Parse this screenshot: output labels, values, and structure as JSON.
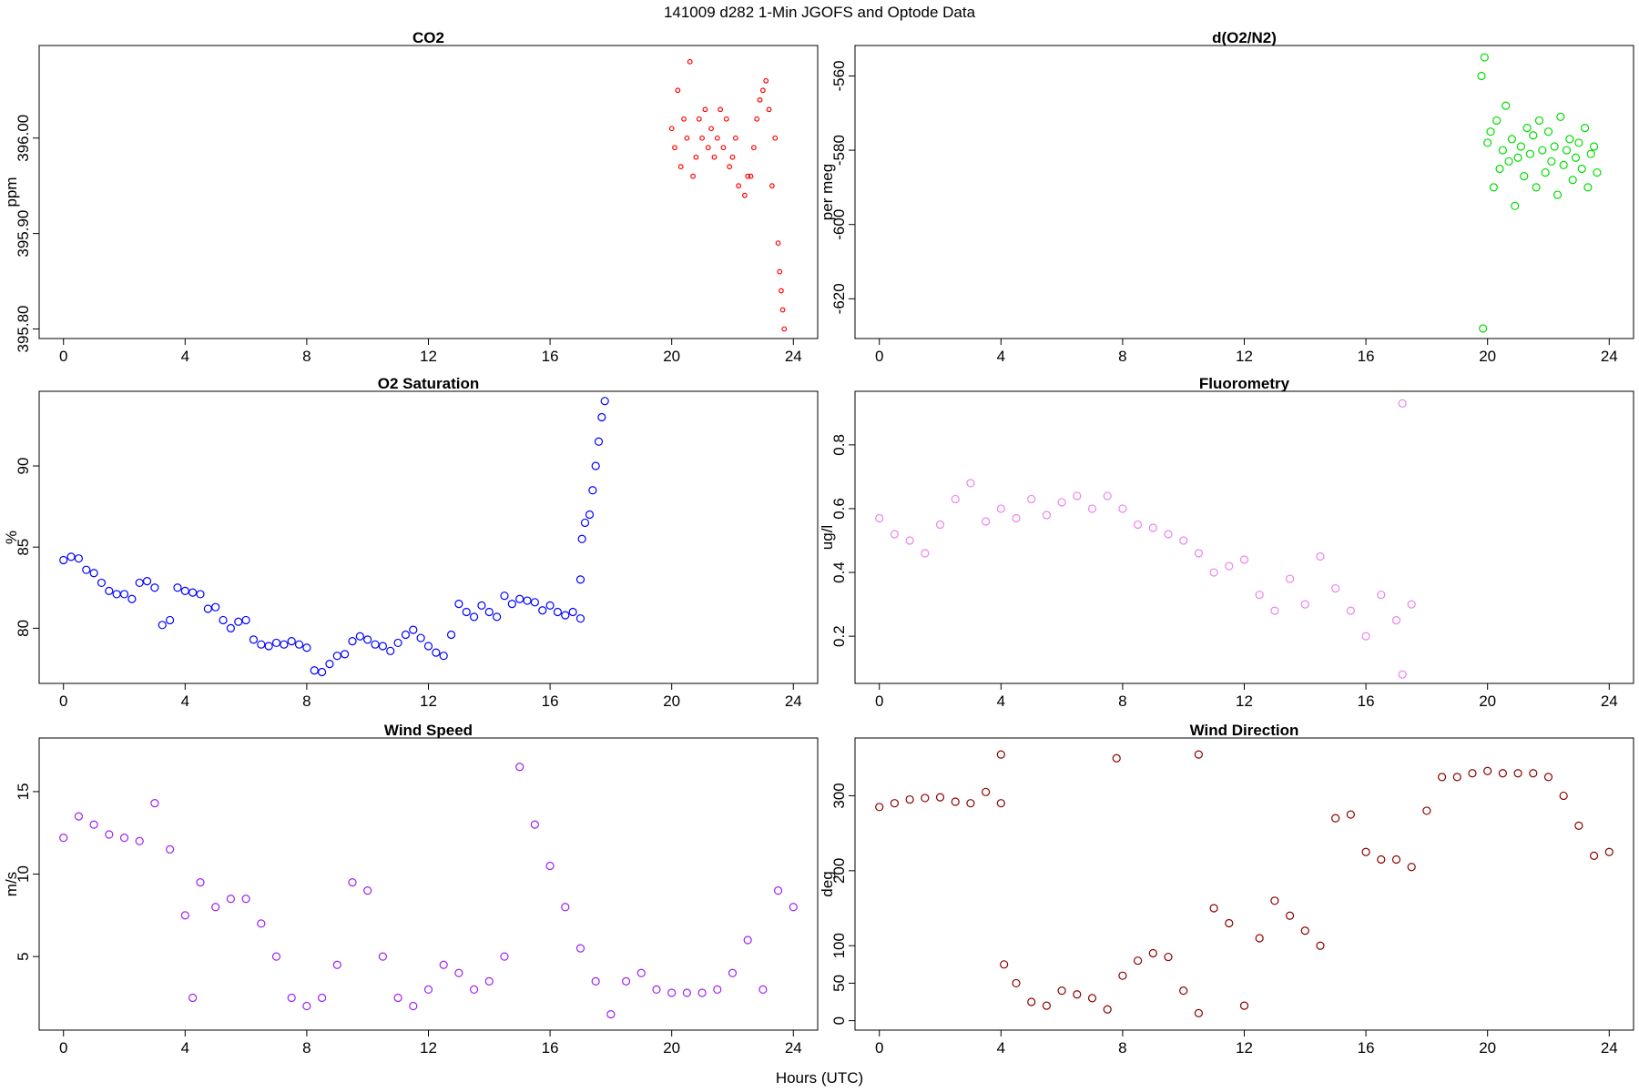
{
  "title": "141009   d282   1-Min  JGOFS and Optode Data",
  "x_label": "Hours (UTC)",
  "chart_data": [
    {
      "type": "scatter",
      "title": "CO2",
      "y_label": "ppm",
      "color": "#ff0000",
      "xlim": [
        -0.8,
        24.8
      ],
      "xticks": [
        0,
        4,
        8,
        12,
        16,
        20,
        24
      ],
      "ylim": [
        395.79,
        396.097
      ],
      "yticks": [
        {
          "value": 395.8,
          "label": "395.80"
        },
        {
          "value": 395.9,
          "label": "395.90"
        },
        {
          "value": 396.0,
          "label": "396.00"
        }
      ],
      "x": [
        20.0,
        20.1,
        20.2,
        20.3,
        20.4,
        20.5,
        20.6,
        20.7,
        20.8,
        20.9,
        21.0,
        21.1,
        21.2,
        21.3,
        21.4,
        21.5,
        21.6,
        21.7,
        21.8,
        21.9,
        22.0,
        22.1,
        22.2,
        22.4,
        22.5,
        22.6,
        22.7,
        22.8,
        22.9,
        23.0,
        23.1,
        23.2,
        23.3,
        23.4,
        23.5,
        23.55,
        23.6,
        23.65,
        23.7
      ],
      "values": [
        396.01,
        395.99,
        396.05,
        395.97,
        396.02,
        396.0,
        396.08,
        395.96,
        395.98,
        396.02,
        396.0,
        396.03,
        395.99,
        396.01,
        395.98,
        396.0,
        396.03,
        395.99,
        396.02,
        395.97,
        395.98,
        396.0,
        395.95,
        395.94,
        395.96,
        395.96,
        395.99,
        396.02,
        396.04,
        396.05,
        396.06,
        396.03,
        395.95,
        396.0,
        395.89,
        395.86,
        395.84,
        395.82,
        395.8
      ]
    },
    {
      "type": "scatter",
      "title": "d(O2/N2)",
      "y_label": "per meg",
      "color": "#00dd00",
      "xlim": [
        -0.8,
        24.8
      ],
      "xticks": [
        0,
        4,
        8,
        12,
        16,
        20,
        24
      ],
      "ylim": [
        -630.7,
        -551.8
      ],
      "yticks": [
        -620,
        -600,
        -580,
        -560
      ],
      "x": [
        19.8,
        19.85,
        19.9,
        20.0,
        20.1,
        20.2,
        20.3,
        20.4,
        20.5,
        20.6,
        20.7,
        20.8,
        20.9,
        21.0,
        21.1,
        21.2,
        21.3,
        21.4,
        21.5,
        21.6,
        21.7,
        21.8,
        21.9,
        22.0,
        22.1,
        22.2,
        22.3,
        22.4,
        22.5,
        22.6,
        22.7,
        22.8,
        22.9,
        23.0,
        23.1,
        23.2,
        23.3,
        23.4,
        23.5,
        23.6
      ],
      "values": [
        -560,
        -628,
        -555,
        -578,
        -575,
        -590,
        -572,
        -585,
        -580,
        -568,
        -583,
        -577,
        -595,
        -582,
        -579,
        -587,
        -574,
        -581,
        -576,
        -590,
        -572,
        -580,
        -586,
        -575,
        -583,
        -579,
        -592,
        -571,
        -584,
        -580,
        -577,
        -588,
        -582,
        -578,
        -585,
        -574,
        -590,
        -581,
        -579,
        -586
      ]
    },
    {
      "type": "scatter",
      "title": "O2 Saturation",
      "y_label": "%",
      "color": "#0000ff",
      "xlim": [
        -0.8,
        24.8
      ],
      "xticks": [
        0,
        4,
        8,
        12,
        16,
        20,
        24
      ],
      "ylim": [
        76.6,
        94.6
      ],
      "yticks": [
        80,
        85,
        90
      ],
      "x": [
        0,
        0.25,
        0.5,
        0.75,
        1,
        1.25,
        1.5,
        1.75,
        2,
        2.25,
        2.5,
        2.75,
        3,
        3.25,
        3.5,
        3.75,
        4,
        4.25,
        4.5,
        4.75,
        5,
        5.25,
        5.5,
        5.75,
        6,
        6.25,
        6.5,
        6.75,
        7,
        7.25,
        7.5,
        7.75,
        8,
        8.25,
        8.5,
        8.75,
        9,
        9.25,
        9.5,
        9.75,
        10,
        10.25,
        10.5,
        10.75,
        11,
        11.25,
        11.5,
        11.75,
        12,
        12.25,
        12.5,
        12.75,
        13,
        13.25,
        13.5,
        13.75,
        14,
        14.25,
        14.5,
        14.75,
        15,
        15.25,
        15.5,
        15.75,
        16,
        16.25,
        16.5,
        16.75,
        17,
        17.0,
        17.05,
        17.15,
        17.3,
        17.4,
        17.5,
        17.6,
        17.7,
        17.8
      ],
      "values": [
        84.2,
        84.4,
        84.3,
        83.6,
        83.4,
        82.8,
        82.3,
        82.1,
        82.1,
        81.8,
        82.8,
        82.9,
        82.5,
        80.2,
        80.5,
        82.5,
        82.3,
        82.2,
        82.1,
        81.2,
        81.3,
        80.5,
        80.0,
        80.4,
        80.5,
        79.3,
        79.0,
        78.9,
        79.1,
        79.0,
        79.2,
        79.0,
        78.8,
        77.4,
        77.3,
        77.8,
        78.3,
        78.4,
        79.2,
        79.5,
        79.3,
        79.0,
        78.9,
        78.6,
        79.1,
        79.6,
        79.9,
        79.4,
        78.9,
        78.5,
        78.3,
        79.6,
        81.5,
        81.0,
        80.7,
        81.4,
        81.0,
        80.7,
        82.0,
        81.5,
        81.8,
        81.7,
        81.6,
        81.1,
        81.4,
        81.0,
        80.8,
        81.0,
        80.6,
        83.0,
        85.5,
        86.5,
        87.0,
        88.5,
        90.0,
        91.5,
        93.0,
        94.0
      ]
    },
    {
      "type": "scatter",
      "title": "Fluorometry",
      "y_label": "ug/l",
      "color": "#ee82ee",
      "xlim": [
        -0.8,
        24.8
      ],
      "xticks": [
        0,
        4,
        8,
        12,
        16,
        20,
        24
      ],
      "ylim": [
        0.052,
        0.968
      ],
      "yticks": [
        0.2,
        0.4,
        0.6,
        0.8
      ],
      "x": [
        0,
        0.5,
        1,
        1.5,
        2,
        2.5,
        3,
        3.5,
        4,
        4.5,
        5,
        5.5,
        6,
        6.5,
        7,
        7.5,
        8,
        8.5,
        9,
        9.5,
        10,
        10.5,
        11,
        11.5,
        12,
        12.5,
        13,
        13.5,
        14,
        14.5,
        15,
        15.5,
        16,
        16.5,
        17,
        17.2,
        17.2,
        17.5
      ],
      "values": [
        0.57,
        0.52,
        0.5,
        0.46,
        0.55,
        0.63,
        0.68,
        0.56,
        0.6,
        0.57,
        0.63,
        0.58,
        0.62,
        0.64,
        0.6,
        0.64,
        0.6,
        0.55,
        0.54,
        0.52,
        0.5,
        0.46,
        0.4,
        0.42,
        0.44,
        0.33,
        0.28,
        0.38,
        0.3,
        0.45,
        0.35,
        0.28,
        0.2,
        0.33,
        0.25,
        0.93,
        0.08,
        0.3
      ]
    },
    {
      "type": "scatter",
      "title": "Wind Speed",
      "y_label": "m/s",
      "color": "#a020f0",
      "xlim": [
        -0.8,
        24.8
      ],
      "xticks": [
        0,
        4,
        8,
        12,
        16,
        20,
        24
      ],
      "ylim": [
        0.54,
        18.25
      ],
      "yticks": [
        5,
        10,
        15
      ],
      "x": [
        0,
        0.5,
        1,
        1.5,
        2,
        2.5,
        3,
        3.5,
        4,
        4.25,
        4.5,
        5,
        5.5,
        6,
        6.5,
        7,
        7.5,
        8,
        8.5,
        9,
        9.5,
        10,
        10.5,
        11,
        11.5,
        12,
        12.5,
        13,
        13.5,
        14,
        14.5,
        15,
        15.5,
        16,
        16.5,
        17,
        17.5,
        18,
        18.5,
        19,
        19.5,
        20,
        20.5,
        21,
        21.5,
        22,
        22.5,
        23,
        23.5,
        24
      ],
      "values": [
        12.2,
        13.5,
        13.0,
        12.4,
        12.2,
        12.0,
        14.3,
        11.5,
        7.5,
        2.5,
        9.5,
        8.0,
        8.5,
        8.5,
        7.0,
        5.0,
        2.5,
        2.0,
        2.5,
        4.5,
        9.5,
        9.0,
        5.0,
        2.5,
        2.0,
        3.0,
        4.5,
        4.0,
        3.0,
        3.5,
        5.0,
        16.5,
        13.0,
        10.5,
        8.0,
        5.5,
        3.5,
        1.5,
        3.5,
        4.0,
        3.0,
        2.8,
        2.8,
        2.8,
        3.0,
        4.0,
        6.0,
        3.0,
        9.0,
        8.0
      ]
    },
    {
      "type": "scatter",
      "title": "Wind Direction",
      "y_label": "deg",
      "color": "#8b0000",
      "xlim": [
        -0.8,
        24.8
      ],
      "xticks": [
        0,
        4,
        8,
        12,
        16,
        20,
        24
      ],
      "ylim": [
        -12.6,
        377
      ],
      "yticks": [
        0,
        50,
        100,
        200,
        300
      ],
      "x": [
        0,
        0.5,
        1,
        1.5,
        2,
        2.5,
        3,
        3.5,
        4,
        4.0,
        4.1,
        4.5,
        5,
        5.5,
        6,
        6.5,
        7,
        7.5,
        7.8,
        8,
        8.5,
        9,
        9.5,
        10,
        10.5,
        10.5,
        11,
        11.5,
        12,
        12.5,
        13,
        13.5,
        14,
        14.5,
        15,
        15.5,
        16,
        16.5,
        17,
        17.5,
        18,
        18.5,
        19,
        19.5,
        20,
        20.5,
        21,
        21.5,
        22,
        22.5,
        23,
        23.5,
        24
      ],
      "values": [
        285,
        290,
        295,
        297,
        298,
        292,
        290,
        305,
        290,
        355,
        75,
        50,
        25,
        20,
        40,
        35,
        30,
        15,
        350,
        60,
        80,
        90,
        85,
        40,
        10,
        355,
        150,
        130,
        20,
        110,
        160,
        140,
        120,
        100,
        270,
        275,
        225,
        215,
        215,
        205,
        280,
        325,
        325,
        330,
        333,
        330,
        330,
        330,
        325,
        300,
        260,
        220,
        225
      ]
    }
  ]
}
